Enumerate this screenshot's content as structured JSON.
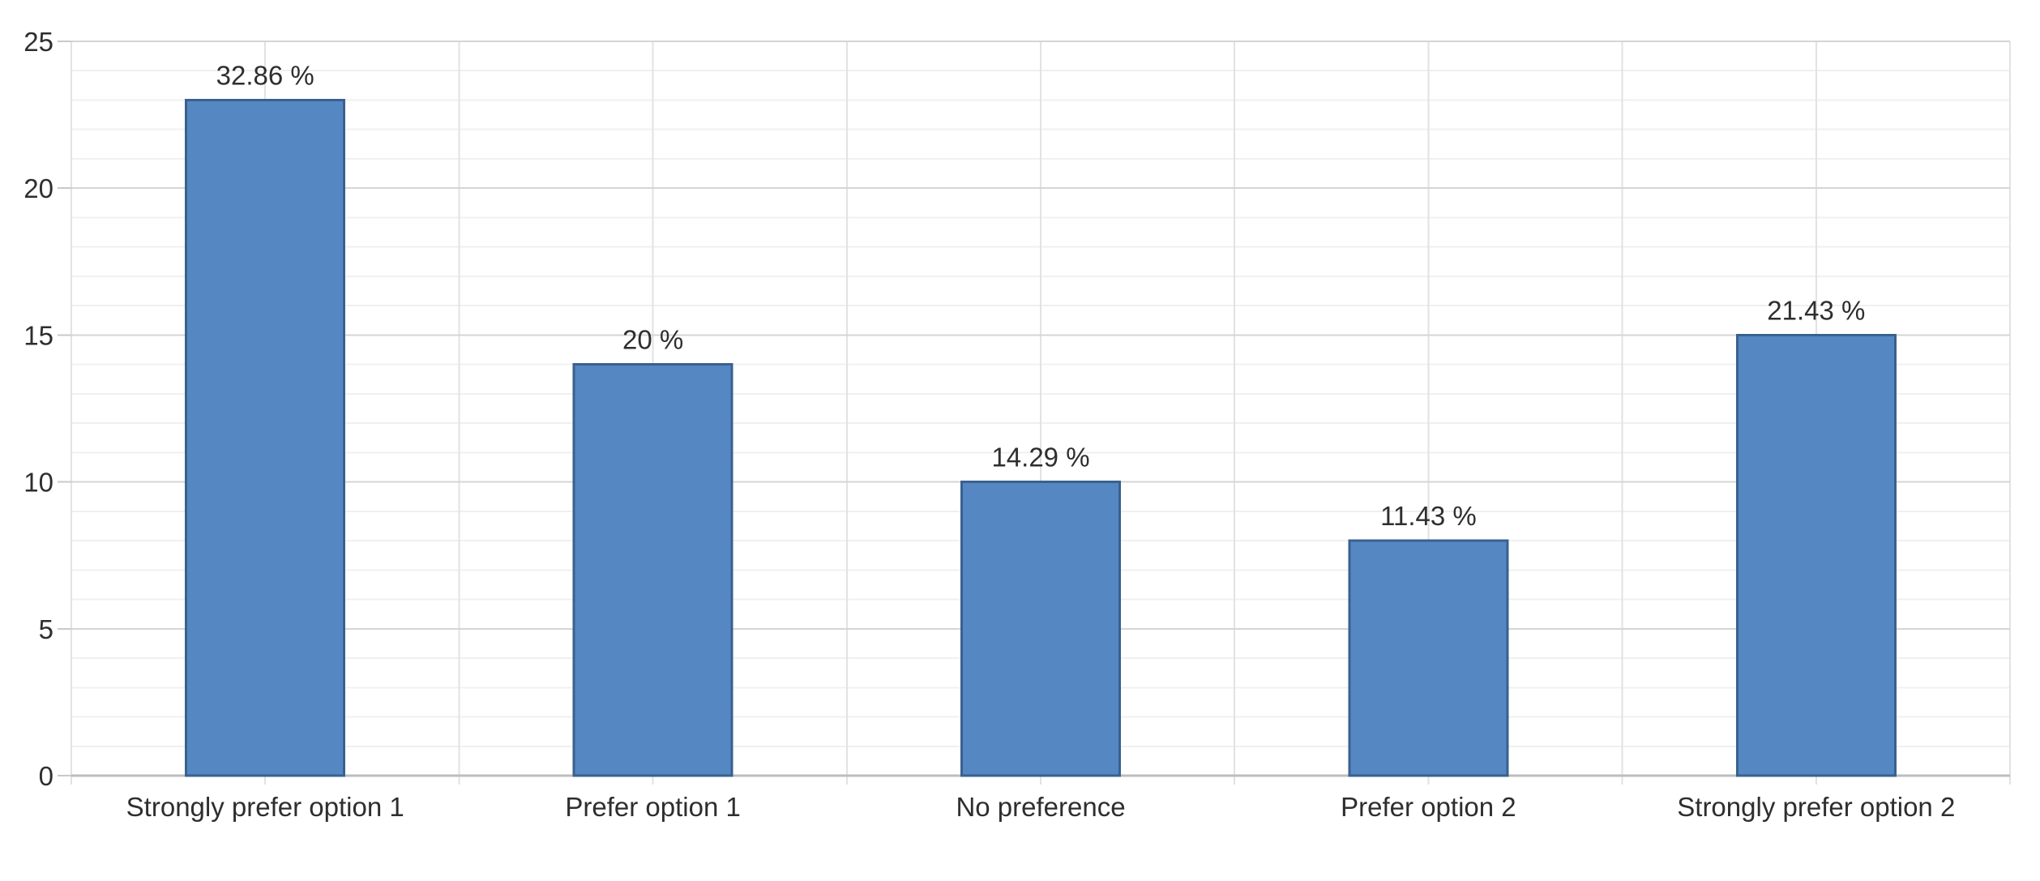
{
  "chart_data": {
    "type": "bar",
    "title": "",
    "xlabel": "",
    "ylabel": "",
    "categories": [
      "Strongly prefer option 1",
      "Prefer option 1",
      "No preference",
      "Prefer option 2",
      "Strongly prefer option 2"
    ],
    "values": [
      23,
      14,
      10,
      8,
      15
    ],
    "value_labels": [
      "32.86 %",
      "20 %",
      "14.29 %",
      "11.43 %",
      "21.43 %"
    ],
    "ylim": [
      0,
      25
    ],
    "yticks": [
      0,
      5,
      10,
      15,
      20,
      25
    ],
    "minor_y_step": 1,
    "grid": true,
    "legend_position": "none",
    "colors": {
      "background": "#ffffff",
      "bar_fill": "#5588c2",
      "bar_border": "#39618f",
      "minor_grid": "#f0f0f0",
      "major_grid": "#d5d5d5",
      "vertical_grid": "#e2e2e2",
      "baseline": "#bdbdbd",
      "tick": "#c9c9c9",
      "text": "#2e2e2e"
    }
  }
}
